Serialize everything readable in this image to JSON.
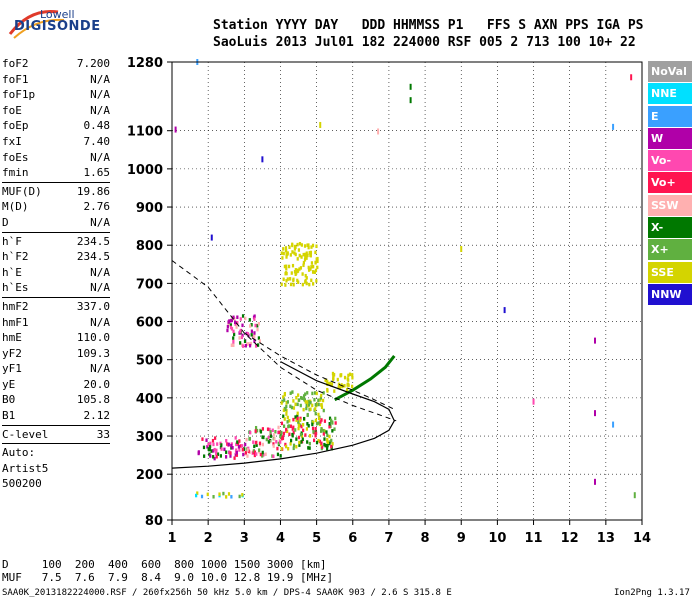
{
  "logo": {
    "top": "Lowell",
    "main": "DIGISONDE"
  },
  "header": {
    "line1": "Station YYYY DAY   DDD HHMMSS P1   FFS S AXN PPS IGA PS",
    "line2": "SaoLuis 2013 Jul01 182 224000 RSF 005 2 713 100 10+ 22"
  },
  "left_panel": {
    "group1": [
      {
        "label": "foF2",
        "value": "7.200"
      },
      {
        "label": "foF1",
        "value": "N/A"
      },
      {
        "label": "foF1p",
        "value": "N/A"
      },
      {
        "label": "foE",
        "value": "N/A"
      },
      {
        "label": "foEp",
        "value": "0.48"
      },
      {
        "label": "fxI",
        "value": "7.40"
      },
      {
        "label": "foEs",
        "value": "N/A"
      },
      {
        "label": "fmin",
        "value": "1.65"
      }
    ],
    "group2": [
      {
        "label": "MUF(D)",
        "value": "19.86"
      },
      {
        "label": "M(D)",
        "value": "2.76"
      },
      {
        "label": "D",
        "value": "N/A"
      }
    ],
    "group3": [
      {
        "label": "h`F",
        "value": "234.5"
      },
      {
        "label": "h`F2",
        "value": "234.5"
      },
      {
        "label": "h`E",
        "value": "N/A"
      },
      {
        "label": "h`Es",
        "value": "N/A"
      }
    ],
    "group4": [
      {
        "label": "hmF2",
        "value": "337.0"
      },
      {
        "label": "hmF1",
        "value": "N/A"
      },
      {
        "label": "hmE",
        "value": "110.0"
      },
      {
        "label": "yF2",
        "value": "109.3"
      },
      {
        "label": "yF1",
        "value": "N/A"
      },
      {
        "label": "yE",
        "value": "20.0"
      },
      {
        "label": "B0",
        "value": "105.8"
      },
      {
        "label": "B1",
        "value": "2.12"
      }
    ],
    "clevel": {
      "label": "C-level",
      "value": "33"
    },
    "auto": [
      "Auto:",
      "Artist5",
      "500200"
    ]
  },
  "legend": [
    {
      "label": "NoVal",
      "color": "#a0a0a0"
    },
    {
      "label": "NNE",
      "color": "#00e0ff"
    },
    {
      "label": "E",
      "color": "#3aa0ff"
    },
    {
      "label": "W",
      "color": "#b000a8"
    },
    {
      "label": "Vo-",
      "color": "#ff48b0"
    },
    {
      "label": "Vo+",
      "color": "#ff1450"
    },
    {
      "label": "SSW",
      "color": "#ffb0b0"
    },
    {
      "label": "X-",
      "color": "#007800"
    },
    {
      "label": "X+",
      "color": "#60b040"
    },
    {
      "label": "SSE",
      "color": "#d4d400"
    },
    {
      "label": "NNW",
      "color": "#2010d0"
    }
  ],
  "chart_data": {
    "type": "scatter",
    "xlim": [
      1,
      14
    ],
    "ylim": [
      80,
      1280
    ],
    "x_ticks": [
      "1",
      "2",
      "3",
      "4",
      "5",
      "6",
      "7",
      "8",
      "9",
      "10",
      "11",
      "12",
      "13",
      "14"
    ],
    "y_ticks": [
      "80",
      "200",
      "300",
      "400",
      "500",
      "600",
      "700",
      "800",
      "900",
      "1000",
      "1100",
      "1280"
    ],
    "grid": true,
    "profile_solid": [
      [
        1.0,
        216
      ],
      [
        2.0,
        221
      ],
      [
        3.0,
        229
      ],
      [
        4.0,
        240
      ],
      [
        5.0,
        255
      ],
      [
        6.0,
        276
      ],
      [
        6.6,
        294
      ],
      [
        7.0,
        315
      ],
      [
        7.15,
        340
      ],
      [
        7.0,
        370
      ],
      [
        6.6,
        390
      ],
      [
        6.0,
        410
      ],
      [
        5.0,
        445
      ],
      [
        4.0,
        495
      ]
    ],
    "profile_xtrace": [
      [
        5.5,
        395
      ],
      [
        6.0,
        420
      ],
      [
        6.5,
        450
      ],
      [
        6.9,
        480
      ],
      [
        7.15,
        510
      ]
    ],
    "model_dashed": [
      [
        1.0,
        760
      ],
      [
        2.0,
        690
      ],
      [
        3.0,
        570
      ],
      [
        4.0,
        480
      ],
      [
        5.0,
        420
      ],
      [
        6.0,
        380
      ],
      [
        6.6,
        360
      ],
      [
        7.2,
        340
      ]
    ],
    "model_dashed_upper": [
      [
        3.0,
        570
      ],
      [
        3.5,
        540
      ],
      [
        4.0,
        510
      ],
      [
        5.0,
        460
      ],
      [
        6.0,
        420
      ],
      [
        6.6,
        395
      ],
      [
        7.15,
        370
      ]
    ],
    "echo_clusters": [
      {
        "x": [
          1.7,
          3.0
        ],
        "y": [
          245,
          300
        ],
        "colors": [
          "#ff1450",
          "#ff48b0",
          "#b000a8",
          "#007800"
        ]
      },
      {
        "x": [
          3.0,
          4.0
        ],
        "y": [
          250,
          330
        ],
        "colors": [
          "#ff1450",
          "#ff48b0",
          "#007800",
          "#60b040",
          "#ffb0b0"
        ]
      },
      {
        "x": [
          4.0,
          5.5
        ],
        "y": [
          270,
          360
        ],
        "colors": [
          "#d4d400",
          "#ff1450",
          "#007800",
          "#60b040"
        ]
      },
      {
        "x": [
          4.0,
          5.2
        ],
        "y": [
          360,
          420
        ],
        "colors": [
          "#d4d400",
          "#60b040"
        ]
      },
      {
        "x": [
          5.2,
          6.0
        ],
        "y": [
          420,
          470
        ],
        "colors": [
          "#d4d400"
        ]
      },
      {
        "x": [
          2.5,
          3.4
        ],
        "y": [
          540,
          620
        ],
        "colors": [
          "#b000a8",
          "#007800",
          "#ff48b0",
          "#ffb0b0"
        ]
      },
      {
        "x": [
          4.0,
          5.0
        ],
        "y": [
          700,
          810
        ],
        "colors": [
          "#d4d400"
        ]
      },
      {
        "x": [
          1.6,
          3.0
        ],
        "y": [
          145,
          155
        ],
        "colors": [
          "#00e0ff",
          "#3aa0ff",
          "#d4d400",
          "#60b040"
        ]
      }
    ],
    "isolated_points": [
      {
        "x": 12.7,
        "y": 550,
        "color": "#b000a8"
      },
      {
        "x": 12.7,
        "y": 360,
        "color": "#b000a8"
      },
      {
        "x": 12.7,
        "y": 180,
        "color": "#b000a8"
      },
      {
        "x": 13.7,
        "y": 1240,
        "color": "#ff1450"
      },
      {
        "x": 13.2,
        "y": 1110,
        "color": "#3aa0ff"
      },
      {
        "x": 10.2,
        "y": 630,
        "color": "#2010d0"
      },
      {
        "x": 7.6,
        "y": 1215,
        "color": "#007800"
      },
      {
        "x": 7.6,
        "y": 1180,
        "color": "#007800"
      },
      {
        "x": 6.7,
        "y": 1098,
        "color": "#ffb0b0"
      },
      {
        "x": 5.1,
        "y": 1115,
        "color": "#d4d400"
      },
      {
        "x": 1.1,
        "y": 1103,
        "color": "#b000a8"
      },
      {
        "x": 3.5,
        "y": 1025,
        "color": "#2010d0"
      },
      {
        "x": 9.0,
        "y": 790,
        "color": "#d4d400"
      },
      {
        "x": 13.2,
        "y": 330,
        "color": "#3aa0ff"
      },
      {
        "x": 13.8,
        "y": 145,
        "color": "#60b040"
      },
      {
        "x": 11.0,
        "y": 390,
        "color": "#ff48b0"
      },
      {
        "x": 2.1,
        "y": 820,
        "color": "#2010d0"
      },
      {
        "x": 1.7,
        "y": 1280,
        "color": "#3aa0ff"
      }
    ]
  },
  "bottom_table": {
    "d_row": "D     100  200  400  600  800 1000 1500 3000 [km]",
    "muf_row": "MUF   7.5  7.6  7.9  8.4  9.0 10.0 12.8 19.9 [MHz]"
  },
  "footer": {
    "left": "SAA0K_2013182224000.RSF / 260fx256h 50 kHz 5.0 km / DPS-4 SAA0K 903 / 2.6 S 315.8 E",
    "right": "Ion2Png 1.3.17"
  }
}
